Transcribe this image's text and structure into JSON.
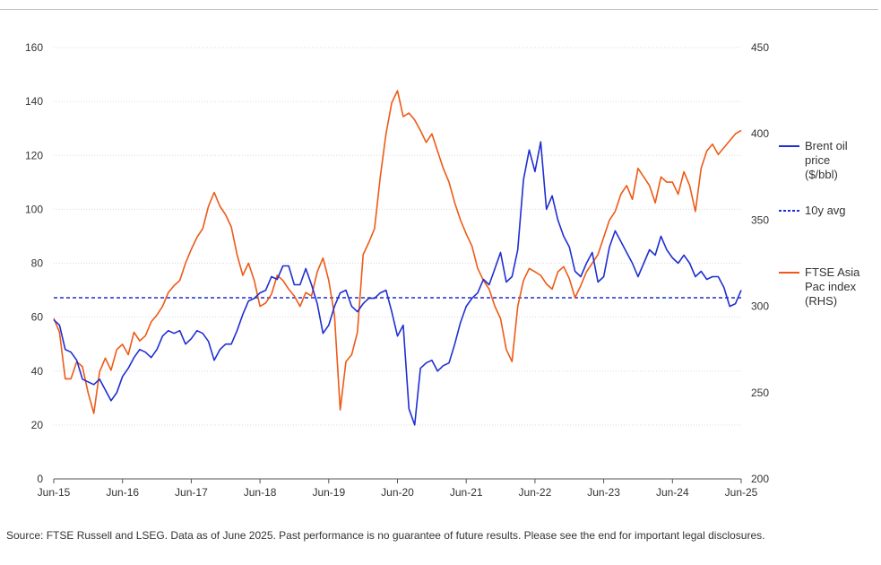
{
  "source_note": "Source: FTSE Russell and LSEG. Data as of June 2025. Past performance is no guarantee of future results. Please see the end for important legal disclosures.",
  "colors": {
    "brent": "#1f2fd0",
    "ftse": "#ee5a16",
    "avg": "#1f2fd0",
    "grid": "#d9d9d9",
    "axis": "#555555"
  },
  "chart_data": {
    "type": "line",
    "x_tick_labels": [
      "Jun-15",
      "Jun-16",
      "Jun-17",
      "Jun-18",
      "Jun-19",
      "Jun-20",
      "Jun-21",
      "Jun-22",
      "Jun-23",
      "Jun-24",
      "Jun-25"
    ],
    "x_range": [
      0,
      120
    ],
    "y_left": {
      "range": [
        0,
        160
      ],
      "ticks": [
        0,
        20,
        40,
        60,
        80,
        100,
        120,
        140,
        160
      ]
    },
    "y_right": {
      "range": [
        200,
        450
      ],
      "ticks": [
        200,
        250,
        300,
        350,
        400,
        450
      ]
    },
    "grid": "horizontal dotted",
    "legend_position": "right",
    "reference_line": {
      "name": "10y avg",
      "value": 67.2,
      "axis": "left",
      "style": "dashed"
    },
    "series": [
      {
        "name": "Brent oil price ($/bbl)",
        "axis": "left",
        "points": [
          [
            0,
            59
          ],
          [
            1,
            57
          ],
          [
            2,
            48
          ],
          [
            3,
            47
          ],
          [
            4,
            44
          ],
          [
            5,
            37
          ],
          [
            6,
            36
          ],
          [
            7,
            35
          ],
          [
            8,
            37
          ],
          [
            9,
            33
          ],
          [
            10,
            29
          ],
          [
            11,
            32
          ],
          [
            12,
            38
          ],
          [
            13,
            41
          ],
          [
            14,
            45
          ],
          [
            15,
            48
          ],
          [
            16,
            47
          ],
          [
            17,
            45
          ],
          [
            18,
            48
          ],
          [
            19,
            53
          ],
          [
            20,
            55
          ],
          [
            21,
            54
          ],
          [
            22,
            55
          ],
          [
            23,
            50
          ],
          [
            24,
            52
          ],
          [
            25,
            55
          ],
          [
            26,
            54
          ],
          [
            27,
            51
          ],
          [
            28,
            44
          ],
          [
            29,
            48
          ],
          [
            30,
            50
          ],
          [
            31,
            50
          ],
          [
            32,
            55
          ],
          [
            33,
            61
          ],
          [
            34,
            66
          ],
          [
            35,
            67
          ],
          [
            36,
            69
          ],
          [
            37,
            70
          ],
          [
            38,
            75
          ],
          [
            39,
            74
          ],
          [
            40,
            79
          ],
          [
            41,
            79
          ],
          [
            42,
            72
          ],
          [
            43,
            72
          ],
          [
            44,
            78
          ],
          [
            45,
            72
          ],
          [
            46,
            65
          ],
          [
            47,
            54
          ],
          [
            48,
            57
          ],
          [
            49,
            64
          ],
          [
            50,
            69
          ],
          [
            51,
            70
          ],
          [
            52,
            64
          ],
          [
            53,
            62
          ],
          [
            54,
            65
          ],
          [
            55,
            67
          ],
          [
            56,
            67
          ],
          [
            57,
            69
          ],
          [
            58,
            70
          ],
          [
            59,
            62
          ],
          [
            60,
            53
          ],
          [
            61,
            57
          ],
          [
            62,
            26
          ],
          [
            63,
            20
          ],
          [
            64,
            41
          ],
          [
            65,
            43
          ],
          [
            66,
            44
          ],
          [
            67,
            40
          ],
          [
            68,
            42
          ],
          [
            69,
            43
          ],
          [
            70,
            50
          ],
          [
            71,
            58
          ],
          [
            72,
            64
          ],
          [
            73,
            67
          ],
          [
            74,
            69
          ],
          [
            75,
            74
          ],
          [
            76,
            72
          ],
          [
            77,
            78
          ],
          [
            78,
            84
          ],
          [
            79,
            73
          ],
          [
            80,
            75
          ],
          [
            81,
            85
          ],
          [
            82,
            111
          ],
          [
            83,
            122
          ],
          [
            84,
            114
          ],
          [
            85,
            125
          ],
          [
            86,
            100
          ],
          [
            87,
            105
          ],
          [
            88,
            96
          ],
          [
            89,
            90
          ],
          [
            90,
            86
          ],
          [
            91,
            77
          ],
          [
            92,
            75
          ],
          [
            93,
            80
          ],
          [
            94,
            84
          ],
          [
            95,
            73
          ],
          [
            96,
            75
          ],
          [
            97,
            86
          ],
          [
            98,
            92
          ],
          [
            99,
            88
          ],
          [
            100,
            84
          ],
          [
            101,
            80
          ],
          [
            102,
            75
          ],
          [
            103,
            80
          ],
          [
            104,
            85
          ],
          [
            105,
            83
          ],
          [
            106,
            90
          ],
          [
            107,
            85
          ],
          [
            108,
            82
          ],
          [
            109,
            80
          ],
          [
            110,
            83
          ],
          [
            111,
            80
          ],
          [
            112,
            75
          ],
          [
            113,
            77
          ],
          [
            114,
            74
          ],
          [
            115,
            75
          ],
          [
            116,
            75
          ],
          [
            117,
            71
          ],
          [
            118,
            64
          ],
          [
            119,
            65
          ],
          [
            120,
            70
          ]
        ]
      },
      {
        "name": "FTSE Asia Pac index (RHS)",
        "axis": "right",
        "points": [
          [
            0,
            293
          ],
          [
            1,
            285
          ],
          [
            2,
            258
          ],
          [
            3,
            258
          ],
          [
            4,
            268
          ],
          [
            5,
            265
          ],
          [
            6,
            250
          ],
          [
            7,
            238
          ],
          [
            8,
            262
          ],
          [
            9,
            270
          ],
          [
            10,
            263
          ],
          [
            11,
            275
          ],
          [
            12,
            278
          ],
          [
            13,
            272
          ],
          [
            14,
            285
          ],
          [
            15,
            280
          ],
          [
            16,
            283
          ],
          [
            17,
            291
          ],
          [
            18,
            295
          ],
          [
            19,
            300
          ],
          [
            20,
            308
          ],
          [
            21,
            312
          ],
          [
            22,
            315
          ],
          [
            23,
            325
          ],
          [
            24,
            333
          ],
          [
            25,
            340
          ],
          [
            26,
            345
          ],
          [
            27,
            358
          ],
          [
            28,
            366
          ],
          [
            29,
            358
          ],
          [
            30,
            353
          ],
          [
            31,
            346
          ],
          [
            32,
            330
          ],
          [
            33,
            318
          ],
          [
            34,
            325
          ],
          [
            35,
            315
          ],
          [
            36,
            300
          ],
          [
            37,
            302
          ],
          [
            38,
            307
          ],
          [
            39,
            318
          ],
          [
            40,
            315
          ],
          [
            41,
            310
          ],
          [
            42,
            306
          ],
          [
            43,
            300
          ],
          [
            44,
            308
          ],
          [
            45,
            306
          ],
          [
            46,
            320
          ],
          [
            47,
            328
          ],
          [
            48,
            315
          ],
          [
            49,
            295
          ],
          [
            50,
            240
          ],
          [
            51,
            268
          ],
          [
            52,
            272
          ],
          [
            53,
            285
          ],
          [
            54,
            330
          ],
          [
            55,
            337
          ],
          [
            56,
            345
          ],
          [
            57,
            375
          ],
          [
            58,
            400
          ],
          [
            59,
            418
          ],
          [
            60,
            425
          ],
          [
            61,
            410
          ],
          [
            62,
            412
          ],
          [
            63,
            408
          ],
          [
            64,
            402
          ],
          [
            65,
            395
          ],
          [
            66,
            400
          ],
          [
            67,
            390
          ],
          [
            68,
            380
          ],
          [
            69,
            372
          ],
          [
            70,
            360
          ],
          [
            71,
            350
          ],
          [
            72,
            342
          ],
          [
            73,
            335
          ],
          [
            74,
            322
          ],
          [
            75,
            315
          ],
          [
            76,
            310
          ],
          [
            77,
            300
          ],
          [
            78,
            293
          ],
          [
            79,
            275
          ],
          [
            80,
            268
          ],
          [
            81,
            300
          ],
          [
            82,
            315
          ],
          [
            83,
            322
          ],
          [
            84,
            320
          ],
          [
            85,
            318
          ],
          [
            86,
            313
          ],
          [
            87,
            310
          ],
          [
            88,
            320
          ],
          [
            89,
            323
          ],
          [
            90,
            316
          ],
          [
            91,
            305
          ],
          [
            92,
            312
          ],
          [
            93,
            320
          ],
          [
            94,
            325
          ],
          [
            95,
            330
          ],
          [
            96,
            340
          ],
          [
            97,
            350
          ],
          [
            98,
            355
          ],
          [
            99,
            365
          ],
          [
            100,
            370
          ],
          [
            101,
            362
          ],
          [
            102,
            380
          ],
          [
            103,
            375
          ],
          [
            104,
            370
          ],
          [
            105,
            360
          ],
          [
            106,
            375
          ],
          [
            107,
            372
          ],
          [
            108,
            372
          ],
          [
            109,
            365
          ],
          [
            110,
            378
          ],
          [
            111,
            370
          ],
          [
            112,
            355
          ],
          [
            113,
            380
          ],
          [
            114,
            390
          ],
          [
            115,
            394
          ],
          [
            116,
            388
          ],
          [
            117,
            392
          ],
          [
            118,
            396
          ],
          [
            119,
            400
          ],
          [
            120,
            402
          ]
        ]
      }
    ]
  },
  "legend": {
    "brent": [
      "Brent oil",
      "price",
      "($/bbl)"
    ],
    "avg": [
      "10y avg"
    ],
    "ftse": [
      "FTSE Asia",
      "Pac index",
      "(RHS)"
    ]
  }
}
